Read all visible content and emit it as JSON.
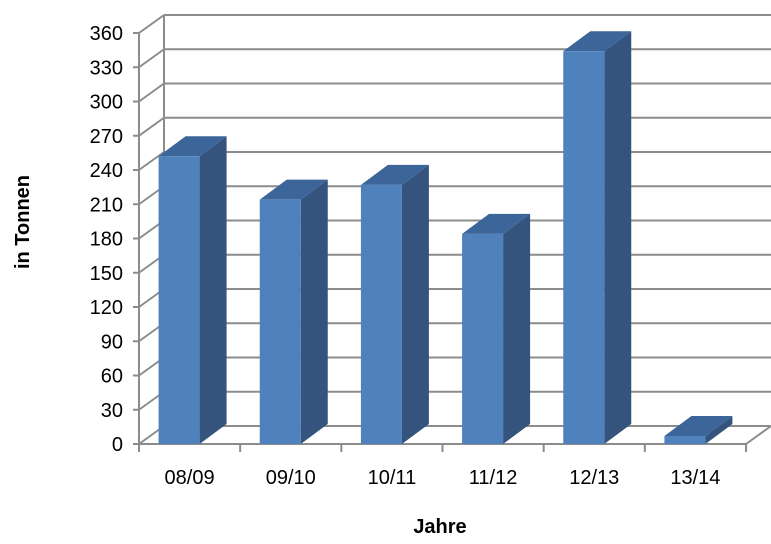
{
  "chart_data": {
    "type": "bar",
    "title": "",
    "xlabel": "Jahre",
    "ylabel": "in Tonnen",
    "categories": [
      "08/09",
      "09/10",
      "10/11",
      "11/12",
      "12/13",
      "13/14"
    ],
    "values": [
      252,
      214,
      227,
      184,
      344,
      7
    ],
    "ylim": [
      0,
      360
    ],
    "yticks": [
      "0",
      "30",
      "60",
      "90",
      "120",
      "150",
      "180",
      "210",
      "240",
      "270",
      "300",
      "330",
      "360"
    ],
    "grid": true,
    "legend": "none",
    "style": "3d-column",
    "colors": {
      "bar_front": "#4F81BD",
      "bar_side": "#34547E",
      "bar_top": "#3C659A",
      "grid": "#8C8C8C"
    }
  }
}
